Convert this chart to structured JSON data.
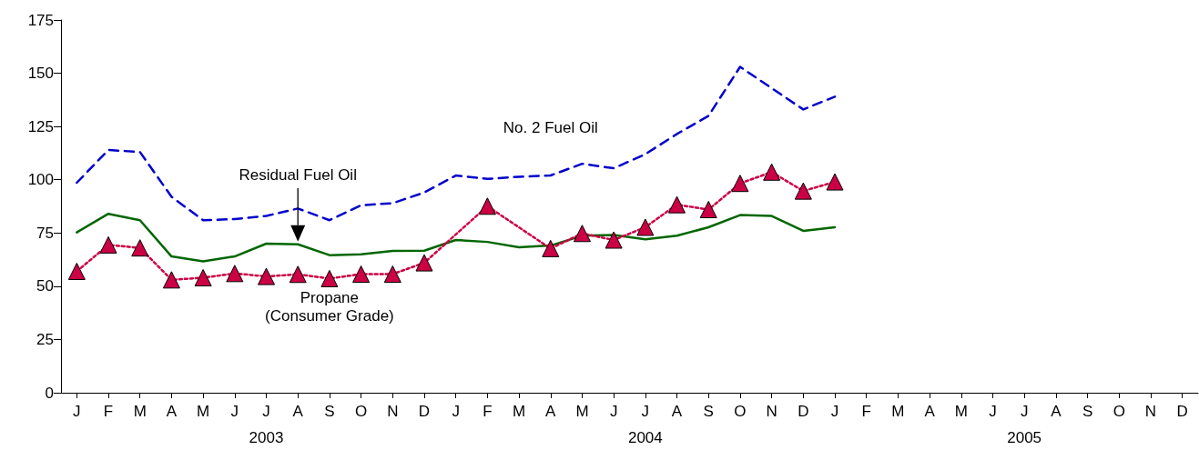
{
  "chart_data": {
    "type": "line",
    "categories": [
      "J",
      "F",
      "M",
      "A",
      "M",
      "J",
      "J",
      "A",
      "S",
      "O",
      "N",
      "D",
      "J",
      "F",
      "M",
      "A",
      "M",
      "J",
      "J",
      "A",
      "S",
      "O",
      "N",
      "D",
      "J",
      "F",
      "M",
      "A",
      "M",
      "J",
      "J",
      "A",
      "S",
      "O",
      "N",
      "D"
    ],
    "annotations": [
      "2003",
      "2004",
      "2005"
    ],
    "ylim": [
      0,
      175
    ],
    "yticks": [
      0,
      25,
      50,
      75,
      100,
      125,
      150,
      175
    ],
    "grid": false,
    "legend": false,
    "series": [
      {
        "name": "No. 2 Fuel Oil",
        "color": "#0000cc",
        "line_style": "dashed",
        "marker": "none",
        "values": [
          98.6,
          114,
          113,
          92,
          81,
          81.5,
          83,
          86.5,
          81,
          88,
          89,
          94,
          102,
          100.4,
          101.4,
          102,
          107.5,
          105.4,
          112,
          121.5,
          130,
          153,
          143,
          133,
          139,
          null,
          null,
          null,
          null,
          null,
          null,
          null,
          null,
          null,
          null,
          null
        ]
      },
      {
        "name": "Residual Fuel Oil",
        "color": "#006600",
        "line_style": "solid",
        "marker": "none",
        "values": [
          75.3,
          84,
          81,
          64,
          61.7,
          64,
          70,
          69.7,
          64.6,
          65,
          66.6,
          66.7,
          71.7,
          70.8,
          68.3,
          69.1,
          73.7,
          74.1,
          72,
          73.7,
          77.7,
          83.4,
          83,
          76,
          77.7,
          null,
          null,
          null,
          null,
          null,
          null,
          null,
          null,
          null,
          null,
          null
        ]
      },
      {
        "name": "Propane\n(Consumer Grade)",
        "color": "#cc0044",
        "line_style": "dotted",
        "marker": "triangle",
        "values": [
          57,
          69.4,
          68,
          53,
          54,
          56,
          54.6,
          55.6,
          53.6,
          55.7,
          55.7,
          61,
          null,
          87.6,
          null,
          67.7,
          74.8,
          71.7,
          77.7,
          88.3,
          86,
          98.3,
          103.6,
          94.7,
          99,
          null,
          null,
          null,
          null,
          null,
          null,
          null,
          null,
          null,
          null,
          null
        ]
      }
    ]
  }
}
